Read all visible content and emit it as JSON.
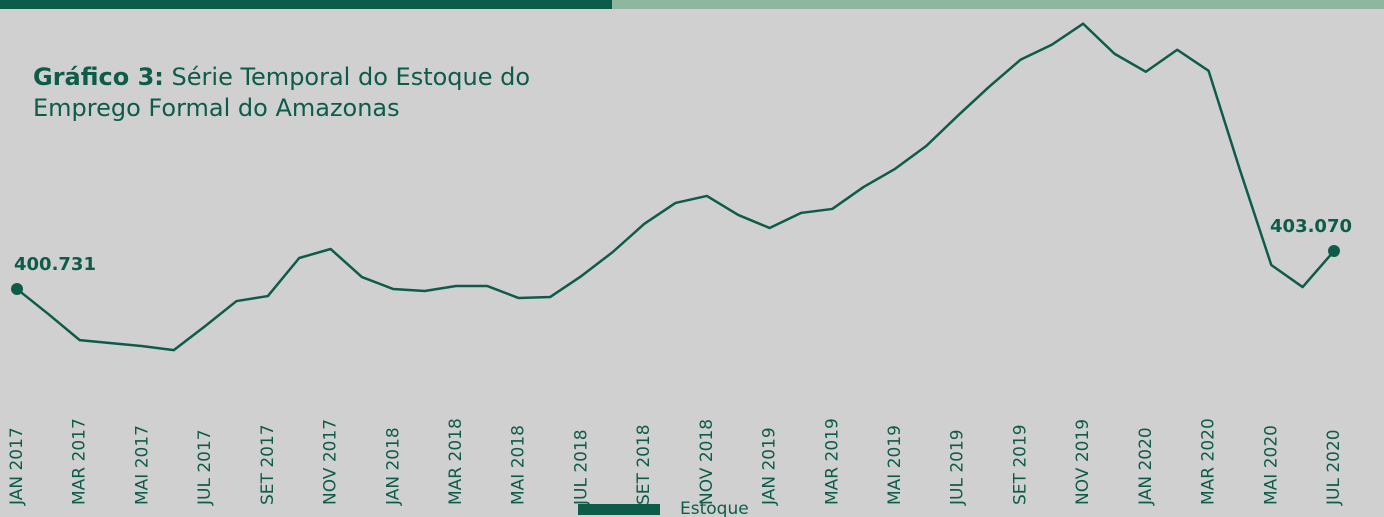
{
  "chart_data": {
    "type": "line",
    "title_label": "Gráfico 3:",
    "title": "Série Temporal do Estoque do Emprego Formal do Amazonas",
    "categories": [
      "JAN 2017",
      null,
      "MAR 2017",
      null,
      "MAI 2017",
      null,
      "JUL 2017",
      null,
      "SET 2017",
      null,
      "NOV 2017",
      null,
      "JAN 2018",
      null,
      "MAR 2018",
      null,
      "MAI 2018",
      null,
      "JUL 2018",
      null,
      "SET 2018",
      null,
      "NOV 2018",
      null,
      "JAN 2019",
      null,
      "MAR 2019",
      null,
      "MAI 2019",
      null,
      "JUL 2019",
      null,
      "SET 2019",
      null,
      "NOV 2019",
      null,
      "JAN 2020",
      null,
      "MAR 2020",
      null,
      "MAI 2020",
      null,
      "JUL 2020"
    ],
    "series": [
      {
        "name": "Estoque",
        "color": "#0d5c4a",
        "values": [
          400731,
          399192,
          397592,
          397407,
          397223,
          396977,
          398454,
          399992,
          400300,
          402639,
          403193,
          401470,
          400731,
          400608,
          400916,
          400916,
          400177,
          400239,
          401531,
          403008,
          404732,
          406024,
          406455,
          405286,
          404486,
          405409,
          405655,
          407009,
          408117,
          409533,
          411379,
          413164,
          414826,
          415749,
          417042,
          415195,
          414087,
          415441,
          414149,
          408055,
          402208,
          400854,
          403070
        ],
        "value_labels": [
          "400.731",
          null,
          null,
          null,
          null,
          null,
          null,
          null,
          null,
          null,
          null,
          null,
          null,
          null,
          null,
          null,
          null,
          null,
          null,
          null,
          null,
          null,
          null,
          null,
          null,
          null,
          null,
          null,
          null,
          null,
          null,
          null,
          null,
          null,
          null,
          null,
          null,
          null,
          null,
          null,
          null,
          null,
          "403.070"
        ]
      }
    ],
    "ylim": [
      396000,
      418500
    ],
    "legend": "bottom"
  }
}
